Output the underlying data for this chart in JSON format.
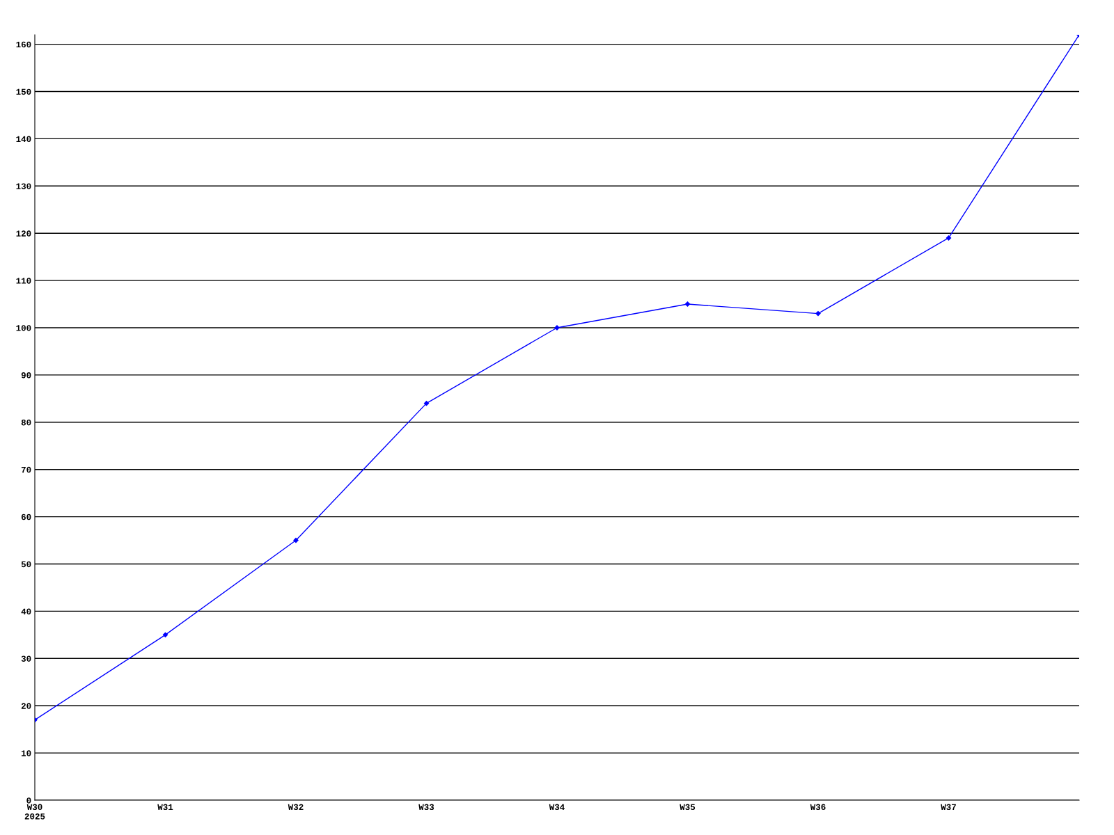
{
  "chart_data": {
    "type": "line",
    "categories": [
      "W30\n2025",
      "W31",
      "W32",
      "W33",
      "W34",
      "W35",
      "W36",
      "W37",
      null
    ],
    "series": [
      {
        "color": "#0000ff",
        "values": [
          17,
          35,
          55,
          84,
          100,
          105,
          103,
          119,
          162
        ]
      }
    ],
    "ylim": [
      0,
      162
    ],
    "yticks": [
      0,
      10,
      20,
      30,
      40,
      50,
      60,
      70,
      80,
      90,
      100,
      110,
      120,
      130,
      140,
      150,
      160
    ],
    "grid": "y",
    "marker": "diamond",
    "line_style": "solid",
    "legend": false
  }
}
